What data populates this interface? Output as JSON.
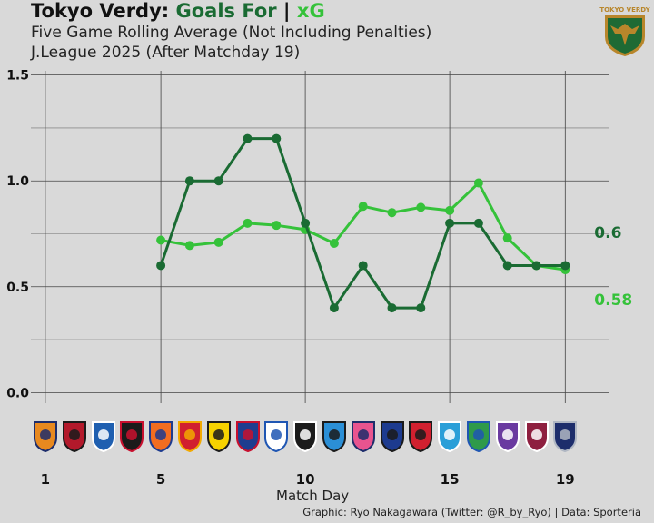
{
  "header": {
    "title_team": "Tokyo Verdy: ",
    "title_goals": "Goals For",
    "title_sep": " | ",
    "title_xg": "xG",
    "subtitle_1": "Five Game Rolling Average (Not Including Penalties)",
    "subtitle_2": "J.League 2025 (After Matchday 19)",
    "logo_text": "TOKYO VERDY"
  },
  "footer": {
    "credit": "Graphic: Ryo Nakagawara (Twitter: @R_by_Ryo) | Data: Sporteria"
  },
  "colors": {
    "background": "#d9d9d9",
    "goals_for": "#1a6b33",
    "xg": "#35c23a",
    "grid": "#444444"
  },
  "opponent_badges": [
    {
      "icon": "shimizu-badge-icon",
      "color": "#e8891f",
      "accent": "#1d2d6b"
    },
    {
      "icon": "kashima-badge-icon",
      "color": "#b3192b",
      "accent": "#1b1b1b"
    },
    {
      "icon": "machida-badge-icon",
      "color": "#1f5fb0",
      "accent": "#ffffff"
    },
    {
      "icon": "sapporo-badge-icon",
      "color": "#1b1b1b",
      "accent": "#c8102e"
    },
    {
      "icon": "niigata-badge-icon",
      "color": "#f26d21",
      "accent": "#1d3b8f"
    },
    {
      "icon": "nagoya-badge-icon",
      "color": "#d1202f",
      "accent": "#f2a900"
    },
    {
      "icon": "kashiwa-badge-icon",
      "color": "#f6d200",
      "accent": "#1b1b1b"
    },
    {
      "icon": "fctokyo-badge-icon",
      "color": "#1f3d8f",
      "accent": "#c8102e"
    },
    {
      "icon": "yokohama-fm-badge-icon",
      "color": "#ffffff",
      "accent": "#1f56b3"
    },
    {
      "icon": "kobe-badge-icon",
      "color": "#1b1b1b",
      "accent": "#ffffff"
    },
    {
      "icon": "kawasaki-badge-icon",
      "color": "#2b8fd6",
      "accent": "#1b1b1b"
    },
    {
      "icon": "cerezo-badge-icon",
      "color": "#e8548f",
      "accent": "#1d2d6b"
    },
    {
      "icon": "gamba-badge-icon",
      "color": "#1d3b8f",
      "accent": "#1b1b1b"
    },
    {
      "icon": "urawa-badge-icon",
      "color": "#d1202f",
      "accent": "#1b1b1b"
    },
    {
      "icon": "yokohama-fc-badge-icon",
      "color": "#2a9fd8",
      "accent": "#ffffff"
    },
    {
      "icon": "shonan-badge-icon",
      "color": "#2f9a4a",
      "accent": "#1f56b3"
    },
    {
      "icon": "hiroshima-badge-icon",
      "color": "#6a3aa0",
      "accent": "#ffffff"
    },
    {
      "icon": "kyoto-badge-icon",
      "color": "#8e1f3f",
      "accent": "#ffffff"
    },
    {
      "icon": "fukuoka-badge-icon",
      "color": "#1d2d6b",
      "accent": "#b0b7c3"
    }
  ],
  "chart_data": {
    "type": "line",
    "title": "Tokyo Verdy: Goals For | xG",
    "xlabel": "Match Day",
    "ylabel": "",
    "xlim": [
      0.5,
      20.5
    ],
    "ylim": [
      -0.05,
      1.52
    ],
    "x_ticks": [
      1,
      5,
      10,
      15,
      19
    ],
    "y_ticks": [
      0.0,
      0.5,
      1.0,
      1.5
    ],
    "y_tick_labels": [
      "0.0",
      "0.5",
      "1.0",
      "1.5"
    ],
    "grid": true,
    "series": [
      {
        "name": "Goals For",
        "x": [
          5,
          6,
          7,
          8,
          9,
          10,
          11,
          12,
          13,
          14,
          15,
          16,
          17,
          18,
          19
        ],
        "values": [
          0.6,
          1.0,
          1.0,
          1.2,
          1.2,
          0.8,
          0.4,
          0.6,
          0.4,
          0.4,
          0.8,
          0.8,
          0.6,
          0.6,
          0.6
        ],
        "end_label": "0.6"
      },
      {
        "name": "xG",
        "x": [
          5,
          6,
          7,
          8,
          9,
          10,
          11,
          12,
          13,
          14,
          15,
          16,
          17,
          18,
          19
        ],
        "values": [
          0.72,
          0.695,
          0.71,
          0.8,
          0.79,
          0.77,
          0.705,
          0.88,
          0.85,
          0.875,
          0.86,
          0.99,
          0.73,
          0.6,
          0.58
        ],
        "end_label": "0.58"
      }
    ]
  }
}
